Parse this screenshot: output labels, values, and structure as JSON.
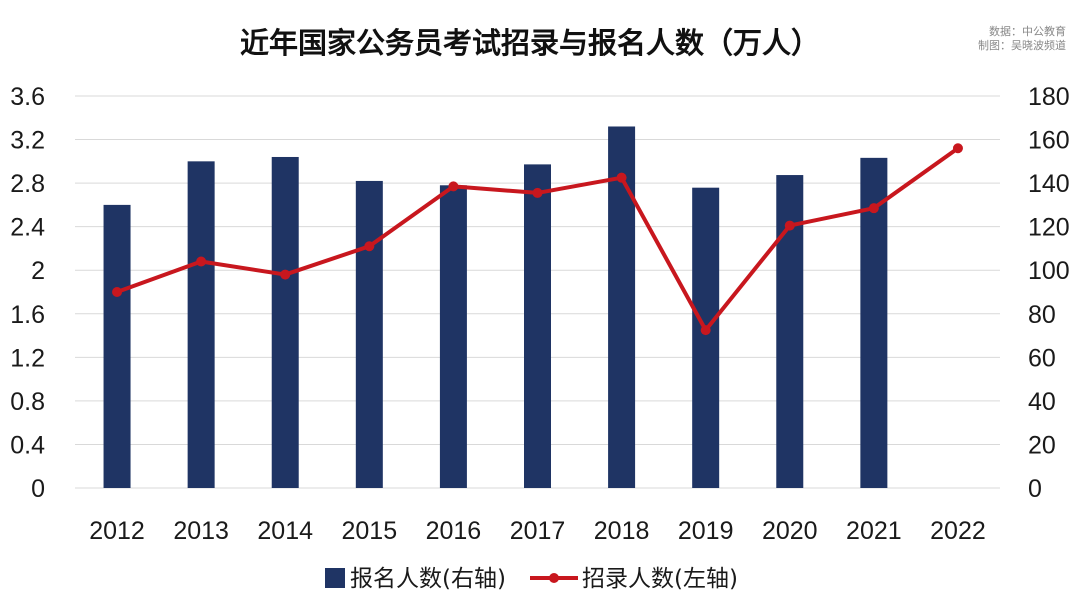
{
  "chart_data": {
    "type": "bar",
    "title": "近年国家公务员考试招录与报名人数（万人）",
    "source_lines": [
      "数据：中公教育",
      "制图：吴晓波频道"
    ],
    "categories": [
      "2012",
      "2013",
      "2014",
      "2015",
      "2016",
      "2017",
      "2018",
      "2019",
      "2020",
      "2021",
      "2022"
    ],
    "y_left": {
      "min": 0,
      "max": 3.6,
      "ticks": [
        "0",
        "0.4",
        "0.8",
        "1.2",
        "1.6",
        "2",
        "2.4",
        "2.8",
        "3.2",
        "3.6"
      ]
    },
    "y_right": {
      "min": 0,
      "max": 180,
      "ticks": [
        "0",
        "20",
        "40",
        "60",
        "80",
        "100",
        "120",
        "140",
        "160",
        "180"
      ]
    },
    "grid": true,
    "legend_position": "bottom",
    "series": [
      {
        "name": "报名人数(右轴)",
        "type": "bar",
        "axis": "right",
        "color": "#1f3464",
        "values": [
          130,
          150,
          152,
          141,
          139,
          148.6,
          166,
          137.9,
          143.7,
          151.6,
          null
        ]
      },
      {
        "name": "招录人数(左轴)",
        "type": "line",
        "axis": "left",
        "color": "#c8171e",
        "values": [
          1.8,
          2.08,
          1.96,
          2.22,
          2.77,
          2.71,
          2.85,
          1.45,
          2.41,
          2.57,
          3.12
        ]
      }
    ]
  }
}
